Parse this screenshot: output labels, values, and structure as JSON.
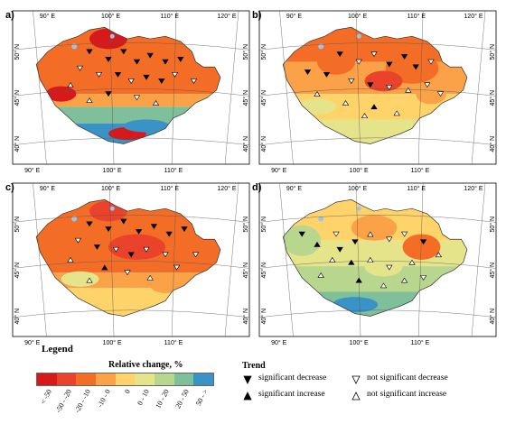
{
  "panels": [
    {
      "label": "a)"
    },
    {
      "label": "b)"
    },
    {
      "label": "c)"
    },
    {
      "label": "d)"
    }
  ],
  "axis_labels": {
    "top": [
      "90° E",
      "100° E",
      "110° E",
      "120° E"
    ],
    "bottom": [
      "90° E",
      "100° E",
      "110° E"
    ],
    "left": [
      "50° N",
      "45° N",
      "40° N"
    ],
    "right": [
      "50° N",
      "45° N",
      "40° N"
    ]
  },
  "legend": {
    "title": "Legend",
    "scale_title": "Relative change, %",
    "categories": [
      {
        "label": "< -50",
        "color": "#d7191c"
      },
      {
        "label": "-50 - -20",
        "color": "#e9432b"
      },
      {
        "label": "-20 - -10",
        "color": "#f46d27"
      },
      {
        "label": "-10 - 0",
        "color": "#fba148"
      },
      {
        "label": "0",
        "color": "#fdd36a"
      },
      {
        "label": "0 - 10",
        "color": "#e6e48a"
      },
      {
        "label": "10 - 20",
        "color": "#b9d68e"
      },
      {
        "label": "20 - 50",
        "color": "#7fbf9a"
      },
      {
        "label": "50 - >",
        "color": "#3a93c6"
      }
    ]
  },
  "trend": {
    "title": "Trend",
    "items": [
      {
        "label": "significant decrease",
        "symbol": "filled-down-triangle"
      },
      {
        "label": "significant increase",
        "symbol": "filled-up-triangle"
      },
      {
        "label": "not significant decrease",
        "symbol": "open-down-triangle"
      },
      {
        "label": "not significant increase",
        "symbol": "open-up-triangle"
      }
    ]
  },
  "colors": {
    "outline": "#333333",
    "graticule": "#555555",
    "lake": "#9ec3e6"
  }
}
